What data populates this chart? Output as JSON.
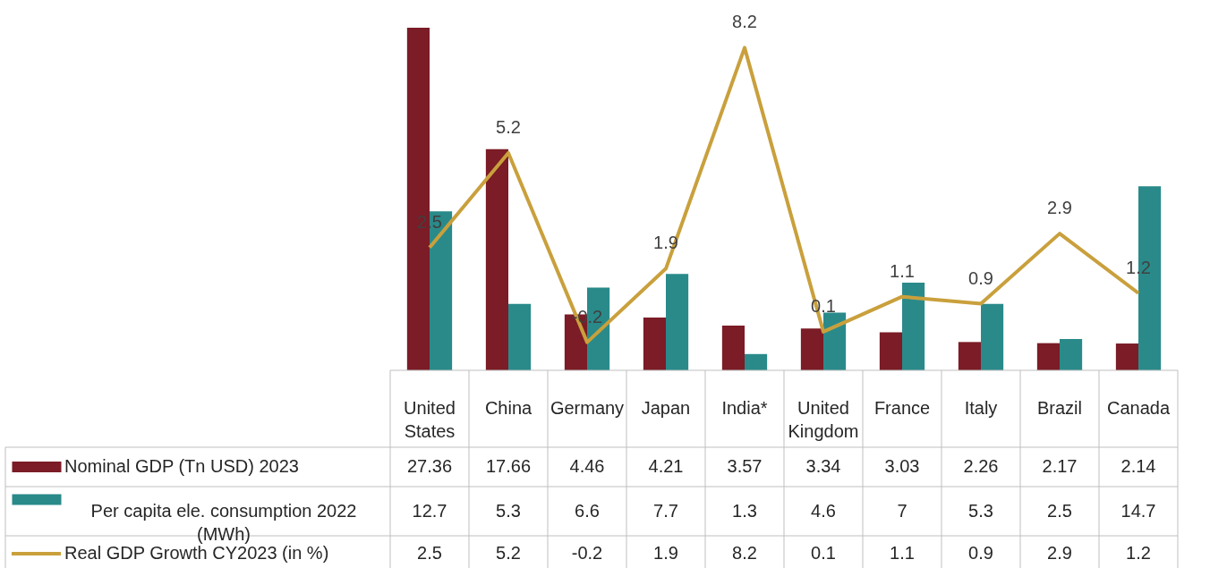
{
  "chart_data": {
    "type": "bar",
    "categories": [
      "United States",
      "China",
      "Germany",
      "Japan",
      "India*",
      "United Kingdom",
      "France",
      "Italy",
      "Brazil",
      "Canada"
    ],
    "series": [
      {
        "name": "Nominal GDP (Tn USD) 2023",
        "color": "#7b1c26",
        "values": [
          27.36,
          17.66,
          4.46,
          4.21,
          3.57,
          3.34,
          3.03,
          2.26,
          2.17,
          2.14
        ]
      },
      {
        "name": "Per capita ele. consumption 2022 (MWh)",
        "color": "#2a8a8a",
        "values": [
          12.7,
          5.3,
          6.6,
          7.7,
          1.3,
          4.6,
          7,
          5.3,
          2.5,
          14.7
        ]
      },
      {
        "name": "Real GDP Growth CY2023 (in %)",
        "color": "#c9a03c",
        "type": "line",
        "axis": "y2",
        "values": [
          2.5,
          5.2,
          -0.2,
          1.9,
          8.2,
          0.1,
          1.1,
          0.9,
          2.9,
          1.2
        ],
        "value_labels": [
          "2.5",
          "5.2",
          "-0.2",
          "1.9",
          "8.2",
          "0.1",
          "1.1",
          "0.9",
          "2.9",
          "1.2"
        ]
      }
    ],
    "tick_labels": "x",
    "data_labels": true,
    "legend": "bottom"
  }
}
